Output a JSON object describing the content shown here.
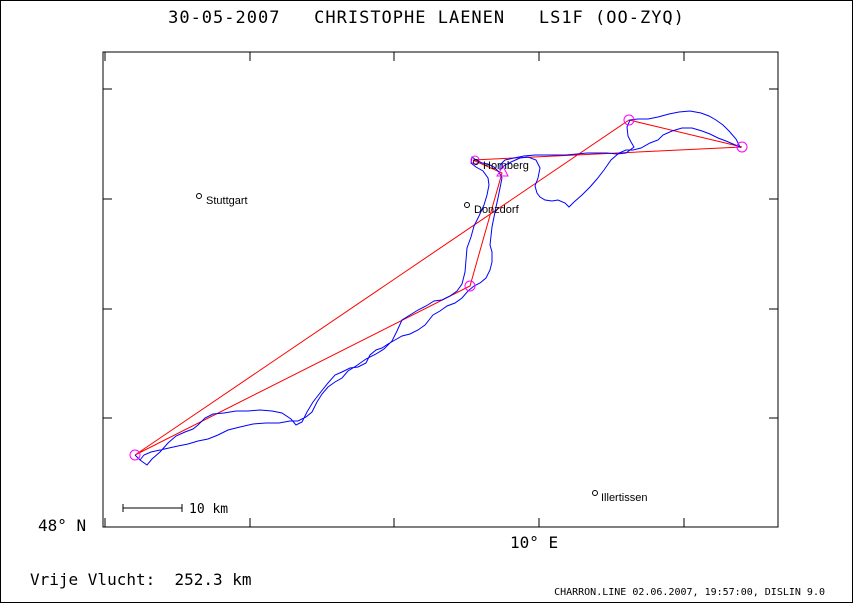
{
  "header": {
    "title": "30-05-2007   CHRISTOPHE LAENEN   LS1F (OO-ZYQ)"
  },
  "map": {
    "lat_label": "48° N",
    "lon_label": "10° E",
    "scale_label": "10 km",
    "places": [
      {
        "name": "Stuttgart"
      },
      {
        "name": "Hornberg"
      },
      {
        "name": "Donzdorf"
      },
      {
        "name": "Illertissen"
      }
    ],
    "colors": {
      "track": "#0000ff",
      "task": "#ff0000",
      "turnpoint": "#ff00ff"
    }
  },
  "distance": {
    "label": "Vrije Vlucht:",
    "value": "252.3 km"
  },
  "footer": {
    "text": "CHARRON.LINE 02.06.2007, 19:57:00, DISLIN 9.0"
  }
}
